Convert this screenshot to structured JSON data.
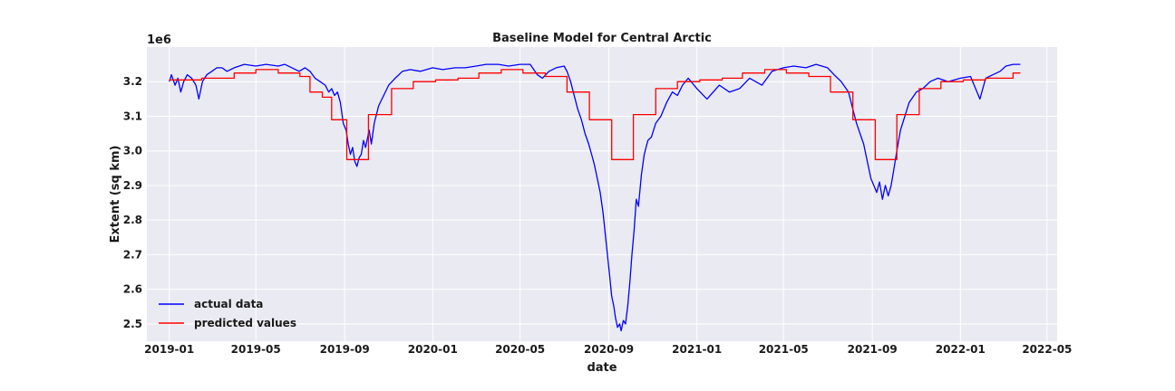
{
  "chart_data": {
    "type": "line",
    "title": "Baseline Model for Central Arctic",
    "xlabel": "date",
    "ylabel": "Extent (sq km)",
    "y_offset_label": "1e6",
    "xlim": [
      "2018-12-01",
      "2022-05-15"
    ],
    "ylim": [
      2.45,
      3.3
    ],
    "scale_factor": 1000000,
    "x_ticks": [
      "2019-01",
      "2019-05",
      "2019-09",
      "2020-01",
      "2020-05",
      "2020-09",
      "2021-01",
      "2021-05",
      "2021-09",
      "2022-01",
      "2022-05"
    ],
    "y_ticks": [
      "2.5",
      "2.6",
      "2.7",
      "2.8",
      "2.9",
      "3.0",
      "3.1",
      "3.2"
    ],
    "grid": true,
    "background": "#eaeaf2",
    "legend_position": "lower-left",
    "series": [
      {
        "name": "actual data",
        "color": "#0000ff",
        "points": [
          [
            "2019-01-01",
            3.2
          ],
          [
            "2019-01-04",
            3.22
          ],
          [
            "2019-01-09",
            3.19
          ],
          [
            "2019-01-13",
            3.21
          ],
          [
            "2019-01-17",
            3.17
          ],
          [
            "2019-01-21",
            3.2
          ],
          [
            "2019-01-26",
            3.22
          ],
          [
            "2019-02-01",
            3.21
          ],
          [
            "2019-02-07",
            3.19
          ],
          [
            "2019-02-11",
            3.15
          ],
          [
            "2019-02-16",
            3.2
          ],
          [
            "2019-02-22",
            3.22
          ],
          [
            "2019-03-01",
            3.23
          ],
          [
            "2019-03-08",
            3.24
          ],
          [
            "2019-03-15",
            3.24
          ],
          [
            "2019-03-22",
            3.23
          ],
          [
            "2019-04-01",
            3.24
          ],
          [
            "2019-04-15",
            3.25
          ],
          [
            "2019-05-01",
            3.245
          ],
          [
            "2019-05-15",
            3.25
          ],
          [
            "2019-06-01",
            3.245
          ],
          [
            "2019-06-10",
            3.25
          ],
          [
            "2019-06-20",
            3.24
          ],
          [
            "2019-06-30",
            3.23
          ],
          [
            "2019-07-08",
            3.24
          ],
          [
            "2019-07-15",
            3.23
          ],
          [
            "2019-07-22",
            3.21
          ],
          [
            "2019-07-29",
            3.2
          ],
          [
            "2019-08-05",
            3.19
          ],
          [
            "2019-08-10",
            3.17
          ],
          [
            "2019-08-14",
            3.18
          ],
          [
            "2019-08-18",
            3.16
          ],
          [
            "2019-08-22",
            3.17
          ],
          [
            "2019-08-26",
            3.14
          ],
          [
            "2019-08-30",
            3.08
          ],
          [
            "2019-09-03",
            3.06
          ],
          [
            "2019-09-06",
            3.02
          ],
          [
            "2019-09-09",
            2.99
          ],
          [
            "2019-09-12",
            3.01
          ],
          [
            "2019-09-15",
            2.97
          ],
          [
            "2019-09-18",
            2.955
          ],
          [
            "2019-09-21",
            2.98
          ],
          [
            "2019-09-24",
            2.99
          ],
          [
            "2019-09-27",
            3.03
          ],
          [
            "2019-09-30",
            3.01
          ],
          [
            "2019-10-03",
            3.04
          ],
          [
            "2019-10-05",
            3.06
          ],
          [
            "2019-10-08",
            3.02
          ],
          [
            "2019-10-12",
            3.08
          ],
          [
            "2019-10-18",
            3.13
          ],
          [
            "2019-10-25",
            3.16
          ],
          [
            "2019-11-01",
            3.19
          ],
          [
            "2019-11-10",
            3.21
          ],
          [
            "2019-11-20",
            3.23
          ],
          [
            "2019-12-01",
            3.235
          ],
          [
            "2019-12-15",
            3.23
          ],
          [
            "2020-01-01",
            3.24
          ],
          [
            "2020-01-15",
            3.235
          ],
          [
            "2020-02-01",
            3.24
          ],
          [
            "2020-02-15",
            3.24
          ],
          [
            "2020-03-01",
            3.245
          ],
          [
            "2020-03-15",
            3.25
          ],
          [
            "2020-04-01",
            3.25
          ],
          [
            "2020-04-15",
            3.245
          ],
          [
            "2020-05-01",
            3.25
          ],
          [
            "2020-05-15",
            3.25
          ],
          [
            "2020-05-25",
            3.22
          ],
          [
            "2020-06-01",
            3.21
          ],
          [
            "2020-06-10",
            3.23
          ],
          [
            "2020-06-20",
            3.24
          ],
          [
            "2020-07-01",
            3.245
          ],
          [
            "2020-07-05",
            3.23
          ],
          [
            "2020-07-10",
            3.2
          ],
          [
            "2020-07-15",
            3.16
          ],
          [
            "2020-07-20",
            3.12
          ],
          [
            "2020-07-25",
            3.09
          ],
          [
            "2020-07-30",
            3.05
          ],
          [
            "2020-08-04",
            3.02
          ],
          [
            "2020-08-08",
            2.99
          ],
          [
            "2020-08-12",
            2.96
          ],
          [
            "2020-08-16",
            2.92
          ],
          [
            "2020-08-20",
            2.88
          ],
          [
            "2020-08-24",
            2.82
          ],
          [
            "2020-08-27",
            2.76
          ],
          [
            "2020-08-30",
            2.7
          ],
          [
            "2020-09-02",
            2.64
          ],
          [
            "2020-09-05",
            2.58
          ],
          [
            "2020-09-08",
            2.55
          ],
          [
            "2020-09-10",
            2.52
          ],
          [
            "2020-09-13",
            2.49
          ],
          [
            "2020-09-16",
            2.5
          ],
          [
            "2020-09-18",
            2.48
          ],
          [
            "2020-09-21",
            2.51
          ],
          [
            "2020-09-24",
            2.5
          ],
          [
            "2020-09-27",
            2.55
          ],
          [
            "2020-09-30",
            2.62
          ],
          [
            "2020-10-03",
            2.7
          ],
          [
            "2020-10-06",
            2.77
          ],
          [
            "2020-10-09",
            2.86
          ],
          [
            "2020-10-12",
            2.84
          ],
          [
            "2020-10-16",
            2.93
          ],
          [
            "2020-10-20",
            2.99
          ],
          [
            "2020-10-25",
            3.03
          ],
          [
            "2020-10-30",
            3.04
          ],
          [
            "2020-11-05",
            3.08
          ],
          [
            "2020-11-12",
            3.1
          ],
          [
            "2020-11-20",
            3.14
          ],
          [
            "2020-11-28",
            3.17
          ],
          [
            "2020-12-05",
            3.16
          ],
          [
            "2020-12-12",
            3.19
          ],
          [
            "2020-12-20",
            3.21
          ],
          [
            "2021-01-01",
            3.18
          ],
          [
            "2021-01-15",
            3.15
          ],
          [
            "2021-02-01",
            3.19
          ],
          [
            "2021-02-15",
            3.17
          ],
          [
            "2021-03-01",
            3.18
          ],
          [
            "2021-03-15",
            3.21
          ],
          [
            "2021-04-01",
            3.19
          ],
          [
            "2021-04-15",
            3.23
          ],
          [
            "2021-05-01",
            3.24
          ],
          [
            "2021-05-15",
            3.245
          ],
          [
            "2021-06-01",
            3.24
          ],
          [
            "2021-06-15",
            3.25
          ],
          [
            "2021-07-01",
            3.24
          ],
          [
            "2021-07-10",
            3.22
          ],
          [
            "2021-07-20",
            3.2
          ],
          [
            "2021-07-30",
            3.17
          ],
          [
            "2021-08-05",
            3.12
          ],
          [
            "2021-08-10",
            3.08
          ],
          [
            "2021-08-15",
            3.05
          ],
          [
            "2021-08-20",
            3.02
          ],
          [
            "2021-08-25",
            2.97
          ],
          [
            "2021-08-30",
            2.92
          ],
          [
            "2021-09-03",
            2.9
          ],
          [
            "2021-09-07",
            2.88
          ],
          [
            "2021-09-11",
            2.91
          ],
          [
            "2021-09-15",
            2.86
          ],
          [
            "2021-09-19",
            2.9
          ],
          [
            "2021-09-23",
            2.87
          ],
          [
            "2021-09-27",
            2.9
          ],
          [
            "2021-10-01",
            2.95
          ],
          [
            "2021-10-05",
            3.0
          ],
          [
            "2021-10-10",
            3.06
          ],
          [
            "2021-10-16",
            3.1
          ],
          [
            "2021-10-22",
            3.14
          ],
          [
            "2021-11-01",
            3.17
          ],
          [
            "2021-11-10",
            3.18
          ],
          [
            "2021-11-20",
            3.2
          ],
          [
            "2021-12-01",
            3.21
          ],
          [
            "2021-12-15",
            3.2
          ],
          [
            "2022-01-01",
            3.21
          ],
          [
            "2022-01-15",
            3.215
          ],
          [
            "2022-01-28",
            3.15
          ],
          [
            "2022-02-05",
            3.21
          ],
          [
            "2022-02-15",
            3.22
          ],
          [
            "2022-02-25",
            3.23
          ],
          [
            "2022-03-05",
            3.245
          ],
          [
            "2022-03-15",
            3.25
          ],
          [
            "2022-03-25",
            3.25
          ]
        ]
      },
      {
        "name": "predicted values",
        "color": "#ff0000",
        "points": [
          [
            "2019-01-01",
            3.205
          ],
          [
            "2019-02-15",
            3.205
          ],
          [
            "2019-02-15",
            3.21
          ],
          [
            "2019-04-01",
            3.21
          ],
          [
            "2019-04-01",
            3.225
          ],
          [
            "2019-05-01",
            3.225
          ],
          [
            "2019-05-01",
            3.235
          ],
          [
            "2019-06-01",
            3.235
          ],
          [
            "2019-06-01",
            3.225
          ],
          [
            "2019-07-01",
            3.225
          ],
          [
            "2019-07-01",
            3.215
          ],
          [
            "2019-07-15",
            3.215
          ],
          [
            "2019-07-15",
            3.17
          ],
          [
            "2019-08-01",
            3.17
          ],
          [
            "2019-08-01",
            3.155
          ],
          [
            "2019-08-14",
            3.155
          ],
          [
            "2019-08-14",
            3.09
          ],
          [
            "2019-09-04",
            3.09
          ],
          [
            "2019-09-04",
            2.975
          ],
          [
            "2019-10-04",
            2.975
          ],
          [
            "2019-10-04",
            3.105
          ],
          [
            "2019-11-05",
            3.105
          ],
          [
            "2019-11-05",
            3.18
          ],
          [
            "2019-12-05",
            3.18
          ],
          [
            "2019-12-05",
            3.2
          ],
          [
            "2020-01-05",
            3.2
          ],
          [
            "2020-01-05",
            3.205
          ],
          [
            "2020-02-05",
            3.205
          ],
          [
            "2020-02-05",
            3.21
          ],
          [
            "2020-03-05",
            3.21
          ],
          [
            "2020-03-05",
            3.225
          ],
          [
            "2020-04-05",
            3.225
          ],
          [
            "2020-04-05",
            3.235
          ],
          [
            "2020-05-05",
            3.235
          ],
          [
            "2020-05-05",
            3.225
          ],
          [
            "2020-06-05",
            3.225
          ],
          [
            "2020-06-05",
            3.215
          ],
          [
            "2020-07-05",
            3.215
          ],
          [
            "2020-07-05",
            3.17
          ],
          [
            "2020-08-05",
            3.17
          ],
          [
            "2020-08-05",
            3.09
          ],
          [
            "2020-09-05",
            3.09
          ],
          [
            "2020-09-05",
            2.975
          ],
          [
            "2020-10-05",
            2.975
          ],
          [
            "2020-10-05",
            3.105
          ],
          [
            "2020-11-05",
            3.105
          ],
          [
            "2020-11-05",
            3.18
          ],
          [
            "2020-12-05",
            3.18
          ],
          [
            "2020-12-05",
            3.2
          ],
          [
            "2021-01-05",
            3.2
          ],
          [
            "2021-01-05",
            3.205
          ],
          [
            "2021-02-05",
            3.205
          ],
          [
            "2021-02-05",
            3.21
          ],
          [
            "2021-03-05",
            3.21
          ],
          [
            "2021-03-05",
            3.225
          ],
          [
            "2021-04-05",
            3.225
          ],
          [
            "2021-04-05",
            3.235
          ],
          [
            "2021-05-05",
            3.235
          ],
          [
            "2021-05-05",
            3.225
          ],
          [
            "2021-06-05",
            3.225
          ],
          [
            "2021-06-05",
            3.215
          ],
          [
            "2021-07-05",
            3.215
          ],
          [
            "2021-07-05",
            3.17
          ],
          [
            "2021-08-05",
            3.17
          ],
          [
            "2021-08-05",
            3.09
          ],
          [
            "2021-09-05",
            3.09
          ],
          [
            "2021-09-05",
            2.975
          ],
          [
            "2021-10-05",
            2.975
          ],
          [
            "2021-10-05",
            3.105
          ],
          [
            "2021-11-05",
            3.105
          ],
          [
            "2021-11-05",
            3.18
          ],
          [
            "2021-12-05",
            3.18
          ],
          [
            "2021-12-05",
            3.2
          ],
          [
            "2022-01-05",
            3.2
          ],
          [
            "2022-01-05",
            3.205
          ],
          [
            "2022-02-05",
            3.205
          ],
          [
            "2022-02-05",
            3.21
          ],
          [
            "2022-03-15",
            3.21
          ],
          [
            "2022-03-15",
            3.225
          ],
          [
            "2022-03-25",
            3.225
          ]
        ]
      }
    ]
  }
}
